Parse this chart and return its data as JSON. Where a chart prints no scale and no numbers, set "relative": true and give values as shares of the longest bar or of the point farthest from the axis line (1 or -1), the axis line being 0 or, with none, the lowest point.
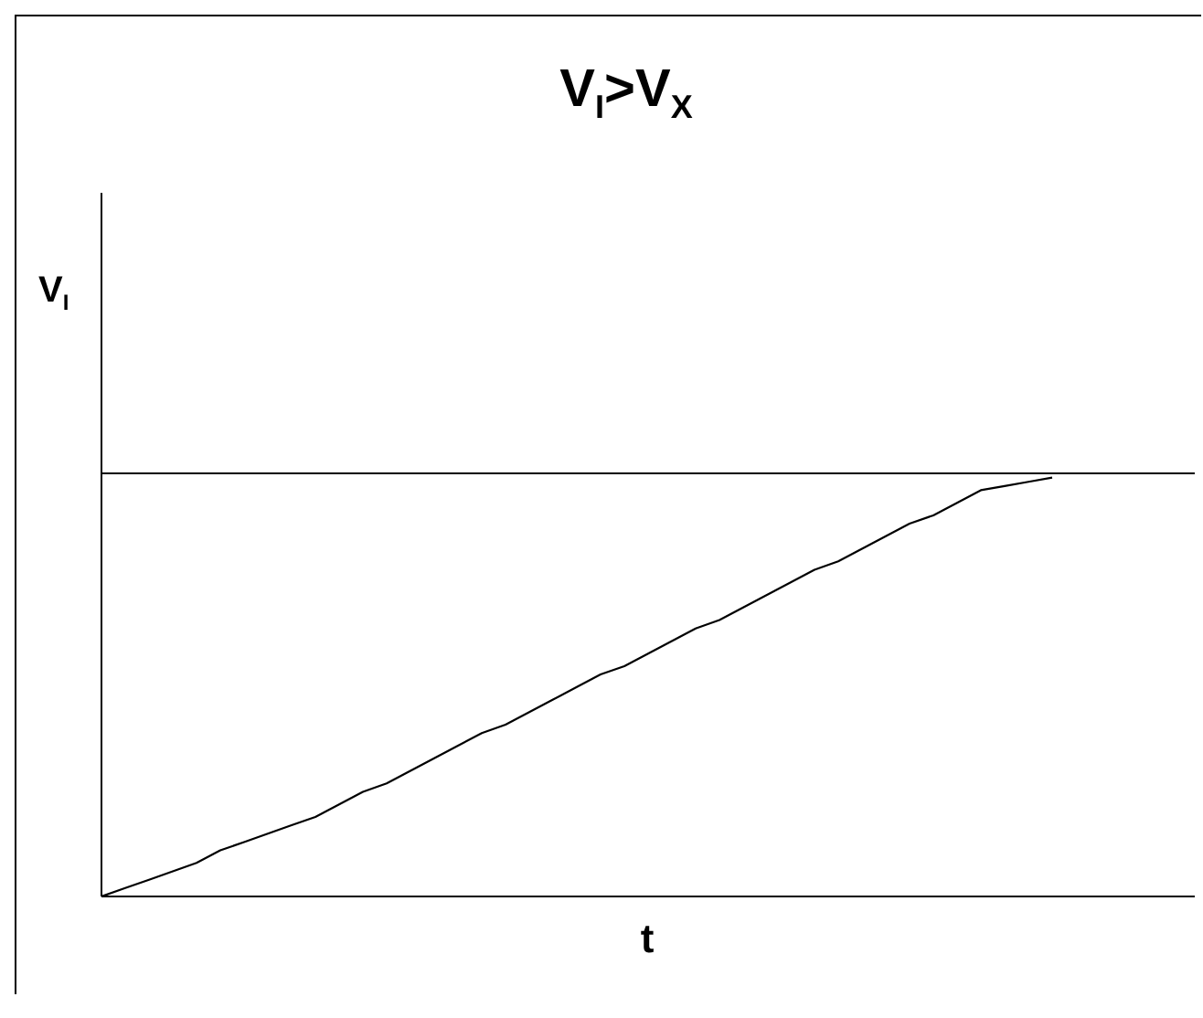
{
  "chart_data": {
    "type": "line",
    "title": "V$_{I}$>V$_{X}$",
    "xlabel": "t",
    "ylabel": "V$_{I}$",
    "relative": true,
    "categories": [
      null,
      null,
      null,
      null,
      null,
      null,
      null,
      null,
      null,
      null,
      null,
      null,
      null,
      null,
      null,
      null,
      null,
      null,
      null,
      null,
      null,
      null,
      null,
      null,
      null,
      null,
      null,
      null,
      null,
      null,
      null,
      null,
      null,
      null,
      null,
      null,
      null,
      null,
      null,
      null,
      null,
      null,
      null,
      null,
      null,
      null,
      null
    ],
    "series": [
      {
        "color": "#000000",
        "values": [
          0,
          0.02,
          0.04,
          0.06,
          0.08,
          0.11,
          0.13,
          0.15,
          0.17,
          0.19,
          0.22,
          0.25,
          0.27,
          0.3,
          0.33,
          0.36,
          0.39,
          0.41,
          0.44,
          0.47,
          0.5,
          0.53,
          0.55,
          0.58,
          0.61,
          0.64,
          0.66,
          0.69,
          0.72,
          0.75,
          0.78,
          0.8,
          0.83,
          0.86,
          0.89,
          0.91,
          0.94,
          0.97,
          0.98,
          0.99,
          1.0,
          null,
          null,
          null,
          null,
          null,
          null
        ]
      }
    ],
    "ref_lines": [
      {
        "axis": "y",
        "value": 1.01,
        "color": "#000000"
      }
    ]
  }
}
